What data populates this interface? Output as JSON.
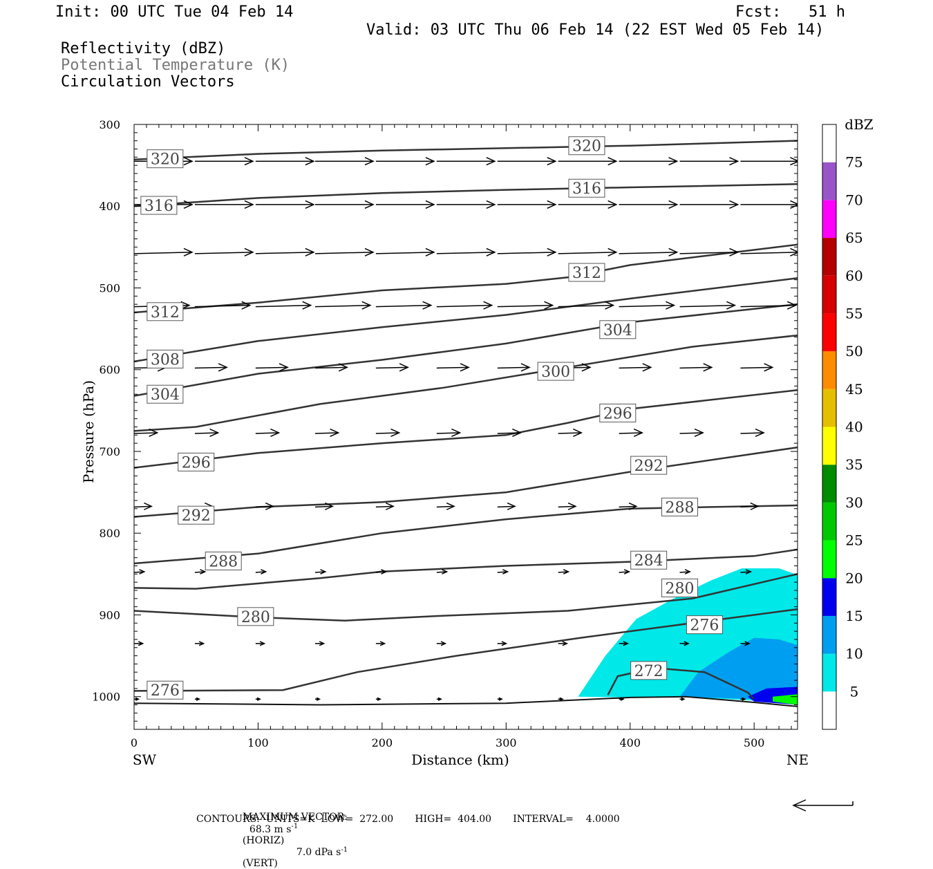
{
  "header": {
    "init": "Init: 00 UTC Tue 04 Feb 14",
    "fcst": "Fcst:   51 h",
    "valid": "Valid: 03 UTC Thu 06 Feb 14 (22 EST Wed 05 Feb 14)"
  },
  "fields": {
    "reflectivity": "Reflectivity (dBZ)",
    "theta": "Potential Temperature (K)",
    "vectors": "Circulation Vectors"
  },
  "footer": {
    "max_vector_label": "MAXIMUM VECTOR:",
    "horiz_value": "68.3 m s",
    "horiz_unit": "(HORIZ)",
    "vert_value": "7.0 dPa s",
    "vert_unit": "(VERT)",
    "exponent": "-1",
    "contours": "CONTOURS:  UNITS=K  LOW=  272.00       HIGH=  404.00       INTERVAL=    4.0000"
  },
  "colors": {
    "contour": "#333333",
    "dbz_5": "#00e8e8",
    "dbz_10": "#009ef0",
    "dbz_15": "#0000f0",
    "dbz_20": "#00ff00"
  },
  "chart_data": {
    "type": "cross-section",
    "xlabel": "Distance (km)",
    "ylabel": "Pressure (hPa)",
    "xlim": [
      0,
      535
    ],
    "ylim": [
      1040,
      300
    ],
    "x_ticks": [
      0,
      100,
      200,
      300,
      400,
      500
    ],
    "y_ticks": [
      300,
      400,
      500,
      600,
      700,
      800,
      900,
      1000
    ],
    "x_end_labels": {
      "left": "SW",
      "right": "NE"
    },
    "colorbar": {
      "title": "dBZ",
      "levels": [
        5,
        10,
        15,
        20,
        25,
        30,
        35,
        40,
        45,
        50,
        55,
        60,
        65,
        70,
        75
      ],
      "colors": [
        "#ffffff",
        "#00e8e8",
        "#009ef0",
        "#0000f0",
        "#00ff00",
        "#00c800",
        "#008c00",
        "#ffff00",
        "#e6be00",
        "#ff8c00",
        "#ff0000",
        "#d60000",
        "#b40000",
        "#ff00ff",
        "#9955c8",
        "#ffffff"
      ]
    },
    "contours": [
      {
        "value": 320,
        "points": [
          [
            0,
            343
          ],
          [
            100,
            336
          ],
          [
            200,
            332
          ],
          [
            300,
            329
          ],
          [
            400,
            326
          ],
          [
            535,
            320
          ]
        ],
        "labels": [
          [
            25,
            342
          ],
          [
            365,
            326
          ]
        ]
      },
      {
        "value": 316,
        "points": [
          [
            0,
            400
          ],
          [
            100,
            390
          ],
          [
            200,
            384
          ],
          [
            300,
            380
          ],
          [
            400,
            377
          ],
          [
            535,
            373
          ]
        ],
        "labels": [
          [
            20,
            399
          ],
          [
            365,
            378
          ]
        ]
      },
      {
        "value": 312,
        "points": [
          [
            0,
            530
          ],
          [
            100,
            518
          ],
          [
            200,
            503
          ],
          [
            300,
            495
          ],
          [
            350,
            487
          ],
          [
            400,
            472
          ],
          [
            535,
            447
          ]
        ],
        "labels": [
          [
            25,
            529
          ],
          [
            365,
            481
          ]
        ]
      },
      {
        "value": 308,
        "points": [
          [
            0,
            590
          ],
          [
            100,
            565
          ],
          [
            200,
            548
          ],
          [
            300,
            533
          ],
          [
            400,
            513
          ],
          [
            535,
            488
          ]
        ],
        "labels": [
          [
            25,
            587
          ]
        ]
      },
      {
        "value": 304,
        "points": [
          [
            0,
            632
          ],
          [
            100,
            605
          ],
          [
            200,
            588
          ],
          [
            300,
            568
          ],
          [
            400,
            542
          ],
          [
            535,
            520
          ]
        ],
        "labels": [
          [
            25,
            630
          ],
          [
            390,
            551
          ]
        ]
      },
      {
        "value": 300,
        "points": [
          [
            0,
            675
          ],
          [
            50,
            670
          ],
          [
            150,
            642
          ],
          [
            250,
            622
          ],
          [
            350,
            597
          ],
          [
            450,
            572
          ],
          [
            535,
            558
          ]
        ],
        "labels": [
          [
            340,
            602
          ]
        ]
      },
      {
        "value": 296,
        "points": [
          [
            0,
            720
          ],
          [
            100,
            702
          ],
          [
            200,
            690
          ],
          [
            300,
            680
          ],
          [
            350,
            665
          ],
          [
            400,
            648
          ],
          [
            535,
            625
          ]
        ],
        "labels": [
          [
            50,
            713
          ],
          [
            390,
            653
          ]
        ]
      },
      {
        "value": 292,
        "points": [
          [
            0,
            780
          ],
          [
            100,
            768
          ],
          [
            200,
            762
          ],
          [
            300,
            750
          ],
          [
            400,
            725
          ],
          [
            535,
            695
          ]
        ],
        "labels": [
          [
            50,
            778
          ],
          [
            415,
            717
          ]
        ]
      },
      {
        "value": 288,
        "points": [
          [
            0,
            837
          ],
          [
            100,
            825
          ],
          [
            200,
            800
          ],
          [
            300,
            783
          ],
          [
            400,
            770
          ],
          [
            535,
            766
          ]
        ],
        "labels": [
          [
            72,
            834
          ],
          [
            440,
            768
          ]
        ]
      },
      {
        "value": 284,
        "points": [
          [
            0,
            867
          ],
          [
            50,
            868
          ],
          [
            150,
            855
          ],
          [
            200,
            847
          ],
          [
            300,
            840
          ],
          [
            400,
            835
          ],
          [
            500,
            828
          ],
          [
            535,
            820
          ]
        ],
        "labels": [
          [
            415,
            833
          ]
        ]
      },
      {
        "value": 280,
        "points": [
          [
            0,
            895
          ],
          [
            100,
            903
          ],
          [
            170,
            907
          ],
          [
            250,
            901
          ],
          [
            350,
            895
          ],
          [
            450,
            880
          ],
          [
            535,
            850
          ]
        ],
        "labels": [
          [
            98,
            902
          ],
          [
            440,
            867
          ]
        ]
      },
      {
        "value": 276,
        "points": [
          [
            0,
            993
          ],
          [
            120,
            992
          ],
          [
            180,
            970
          ],
          [
            260,
            950
          ],
          [
            360,
            928
          ],
          [
            450,
            910
          ],
          [
            535,
            893
          ]
        ],
        "labels": [
          [
            25,
            992
          ],
          [
            460,
            912
          ]
        ]
      },
      {
        "value": 272,
        "points": [
          [
            382,
            998
          ],
          [
            390,
            975
          ],
          [
            420,
            965
          ],
          [
            460,
            970
          ],
          [
            495,
            995
          ],
          [
            500,
            1003
          ]
        ],
        "labels": [
          [
            415,
            968
          ]
        ]
      }
    ],
    "ground": [
      [
        0,
        1008
      ],
      [
        150,
        1010
      ],
      [
        300,
        1008
      ],
      [
        400,
        1001
      ],
      [
        445,
        1000
      ],
      [
        500,
        1007
      ],
      [
        535,
        1012
      ]
    ],
    "reflectivity_regions": [
      {
        "dbz": 5,
        "polygon": [
          [
            358,
            1000
          ],
          [
            380,
            950
          ],
          [
            405,
            905
          ],
          [
            435,
            880
          ],
          [
            465,
            858
          ],
          [
            490,
            843
          ],
          [
            520,
            843
          ],
          [
            535,
            851
          ],
          [
            535,
            1008
          ],
          [
            445,
            1000
          ],
          [
            400,
            1001
          ]
        ]
      },
      {
        "dbz": 10,
        "polygon": [
          [
            440,
            1000
          ],
          [
            455,
            970
          ],
          [
            480,
            945
          ],
          [
            500,
            928
          ],
          [
            520,
            930
          ],
          [
            535,
            937
          ],
          [
            535,
            1008
          ],
          [
            500,
            1003
          ]
        ]
      },
      {
        "dbz": 15,
        "polygon": [
          [
            495,
            1000
          ],
          [
            510,
            990
          ],
          [
            535,
            988
          ],
          [
            535,
            1010
          ],
          [
            500,
            1006
          ]
        ]
      },
      {
        "dbz": 20,
        "polygon": [
          [
            515,
            1000
          ],
          [
            535,
            997
          ],
          [
            535,
            1010
          ],
          [
            515,
            1006
          ]
        ]
      }
    ],
    "vectors": {
      "rows": [
        {
          "p": 345,
          "xs": [
            0,
            49,
            98,
            146,
            195,
            244,
            293,
            342,
            391,
            440,
            489
          ],
          "u": 40,
          "w": 0
        },
        {
          "p": 398,
          "xs": [
            0,
            49,
            98,
            146,
            195,
            244,
            293,
            342,
            391,
            440,
            489
          ],
          "u": 40,
          "w": 0
        },
        {
          "p": 458,
          "xs": [
            0,
            49,
            98,
            146,
            195,
            244,
            293,
            342,
            391,
            440,
            489
          ],
          "u": 40,
          "w": 2
        },
        {
          "p": 523,
          "xs": [
            0,
            49,
            98,
            146,
            195,
            244,
            293,
            342,
            391,
            440,
            489
          ],
          "u": 38,
          "w": 2
        },
        {
          "p": 598,
          "xs": [
            0,
            49,
            98,
            146,
            195,
            244,
            293,
            342,
            391,
            440,
            489
          ],
          "u": 22,
          "w": 1
        },
        {
          "p": 678,
          "xs": [
            0,
            49,
            98,
            146,
            195,
            244,
            293,
            342,
            391,
            440,
            489
          ],
          "u": 16,
          "w": 1
        },
        {
          "p": 768,
          "xs": [
            0,
            49,
            98,
            146,
            195,
            244,
            293,
            342,
            391,
            440,
            489
          ],
          "u": 12,
          "w": 1
        },
        {
          "p": 848,
          "xs": [
            0,
            49,
            98,
            146,
            195,
            244,
            293,
            342,
            391,
            440,
            489
          ],
          "u": 7,
          "w": 1
        },
        {
          "p": 935,
          "xs": [
            0,
            49,
            98,
            146,
            195,
            244,
            293,
            342,
            391,
            440,
            489
          ],
          "u": 6,
          "w": 0
        },
        {
          "p": 1003,
          "xs": [
            0,
            49,
            98,
            146,
            195,
            244,
            293,
            342,
            391,
            440,
            489
          ],
          "u": 3,
          "w": 0
        }
      ]
    }
  }
}
